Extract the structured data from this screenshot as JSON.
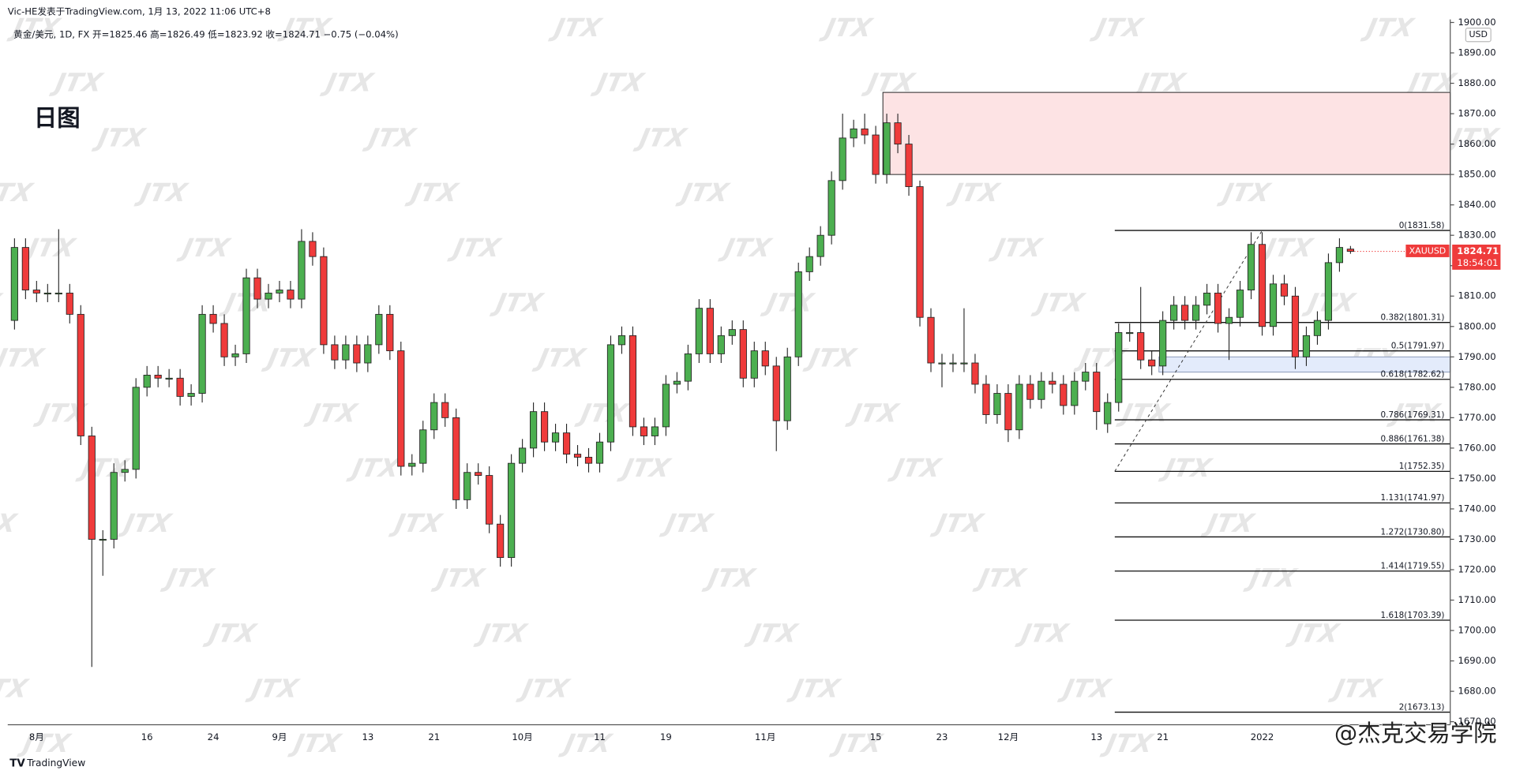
{
  "header": {
    "author": "Vic-HE发表于TradingView.com, 1月 13, 2022 11:06 UTC+8",
    "legend": "黄金/美元, 1D, FX  开=1825.46  高=1826.49  低=1823.92  收=1824.71  −0.75 (−0.04%)",
    "brand": "TradingView",
    "watermark": "JTX",
    "signature": "@杰克交易学院"
  },
  "chart_data": {
    "type": "candlestick",
    "title": "日图",
    "symbol": "XAUUSD",
    "currency": "USD",
    "countdown": "18:54:01",
    "last_price": 1824.71,
    "up_color": "#4caf50",
    "down_color": "#ef3b3b",
    "border_color": "#222222",
    "grid": false,
    "categories": [
      null,
      null,
      "8月",
      null,
      null,
      null,
      null,
      null,
      null,
      null,
      null,
      null,
      "16",
      null,
      null,
      null,
      null,
      null,
      "24",
      null,
      null,
      null,
      null,
      null,
      "9月",
      null,
      null,
      null,
      null,
      null,
      null,
      null,
      "13",
      null,
      null,
      null,
      null,
      null,
      "21",
      null,
      null,
      null,
      null,
      null,
      null,
      null,
      "10月",
      null,
      null,
      null,
      null,
      null,
      null,
      "11",
      null,
      null,
      null,
      null,
      null,
      "19",
      null,
      null,
      null,
      null,
      null,
      null,
      null,
      null,
      "11月",
      null,
      null,
      null,
      null,
      null,
      null,
      null,
      null,
      null,
      "15",
      null,
      null,
      null,
      null,
      null,
      "23",
      null,
      null,
      null,
      null,
      null,
      "12月",
      null,
      null,
      null,
      null,
      null,
      null,
      null,
      "13",
      null,
      null,
      null,
      null,
      null,
      "21",
      null,
      null,
      null,
      null,
      null,
      null,
      null,
      null,
      "2022",
      null,
      null,
      null,
      null,
      null,
      null,
      null,
      null
    ],
    "open": [
      1802,
      1826,
      1812,
      1811,
      1811,
      1811,
      1804,
      1764,
      1730,
      1730,
      1752,
      1753,
      1780,
      1784,
      1783,
      1783,
      1777,
      1778,
      1804,
      1801,
      1790,
      1791,
      1816,
      1809,
      1811,
      1812,
      1809,
      1828,
      1823,
      1794,
      1789,
      1794,
      1788,
      1794,
      1804,
      1792,
      1754,
      1755,
      1766,
      1775,
      1770,
      1743,
      1752,
      1751,
      1735,
      1724,
      1755,
      1760,
      1772,
      1762,
      1765,
      1758,
      1757,
      1755,
      1762,
      1794,
      1797,
      1767,
      1764,
      1767,
      1781,
      1782,
      1791,
      1806,
      1791,
      1797,
      1799,
      1783,
      1792,
      1787,
      1769,
      1790,
      1818,
      1823,
      1830,
      1848,
      1862,
      1865,
      1863,
      1850,
      1867,
      1860,
      1846,
      1803,
      1788,
      1788,
      1788,
      1788,
      1781,
      1771,
      1778,
      1766,
      1781,
      1776,
      1782,
      1781,
      1774,
      1782,
      1785,
      1768,
      1775,
      1798,
      1798,
      1789,
      1787,
      1802,
      1807,
      1802,
      1807,
      1811,
      1801,
      1803,
      1812,
      1827,
      1800,
      1814,
      1810,
      1790,
      1797,
      1802,
      1821,
      1825.46
    ],
    "high": [
      1829,
      1829,
      1815,
      1814,
      1832,
      1814,
      1807,
      1767,
      1733,
      1755,
      1756,
      1783,
      1787,
      1787,
      1786,
      1786,
      1781,
      1807,
      1807,
      1804,
      1794,
      1819,
      1819,
      1814,
      1815,
      1815,
      1832,
      1831,
      1826,
      1797,
      1797,
      1797,
      1797,
      1807,
      1807,
      1795,
      1758,
      1769,
      1778,
      1778,
      1773,
      1755,
      1755,
      1754,
      1738,
      1758,
      1763,
      1775,
      1775,
      1768,
      1768,
      1761,
      1760,
      1765,
      1797,
      1800,
      1800,
      1770,
      1770,
      1784,
      1785,
      1794,
      1809,
      1809,
      1800,
      1802,
      1802,
      1795,
      1795,
      1790,
      1793,
      1821,
      1826,
      1833,
      1851,
      1870,
      1868,
      1870,
      1866,
      1870,
      1870,
      1863,
      1848,
      1806,
      1791,
      1791,
      1806,
      1791,
      1784,
      1781,
      1781,
      1784,
      1784,
      1785,
      1785,
      1784,
      1785,
      1788,
      1788,
      1778,
      1801,
      1801,
      1813,
      1792,
      1805,
      1810,
      1810,
      1810,
      1814,
      1814,
      1806,
      1815,
      1831,
      1831,
      1817,
      1817,
      1813,
      1800,
      1805,
      1824,
      1829,
      1826.49
    ],
    "low": [
      1799,
      1809,
      1808,
      1808,
      1808,
      1801,
      1761,
      1688,
      1718,
      1727,
      1749,
      1750,
      1777,
      1780,
      1780,
      1774,
      1774,
      1775,
      1798,
      1787,
      1787,
      1788,
      1806,
      1806,
      1808,
      1806,
      1806,
      1820,
      1791,
      1786,
      1786,
      1785,
      1785,
      1791,
      1789,
      1751,
      1751,
      1752,
      1763,
      1767,
      1740,
      1740,
      1748,
      1732,
      1721,
      1721,
      1752,
      1757,
      1759,
      1759,
      1755,
      1754,
      1752,
      1752,
      1759,
      1791,
      1764,
      1761,
      1761,
      1764,
      1778,
      1779,
      1788,
      1788,
      1788,
      1794,
      1780,
      1780,
      1784,
      1759,
      1766,
      1787,
      1815,
      1820,
      1827,
      1845,
      1859,
      1860,
      1847,
      1847,
      1857,
      1843,
      1800,
      1785,
      1780,
      1785,
      1785,
      1778,
      1768,
      1768,
      1762,
      1763,
      1773,
      1773,
      1778,
      1771,
      1771,
      1779,
      1766,
      1765,
      1772,
      1795,
      1786,
      1784,
      1784,
      1799,
      1799,
      1799,
      1804,
      1798,
      1789,
      1800,
      1809,
      1797,
      1797,
      1807,
      1786,
      1787,
      1794,
      1799,
      1818,
      1823.92
    ],
    "close": [
      1826,
      1812,
      1811,
      1811,
      1811,
      1804,
      1764,
      1730,
      1730,
      1752,
      1753,
      1780,
      1784,
      1783,
      1783,
      1777,
      1778,
      1804,
      1801,
      1790,
      1791,
      1816,
      1809,
      1811,
      1812,
      1809,
      1828,
      1823,
      1794,
      1789,
      1794,
      1788,
      1794,
      1804,
      1792,
      1754,
      1755,
      1766,
      1775,
      1770,
      1743,
      1752,
      1751,
      1735,
      1724,
      1755,
      1760,
      1772,
      1762,
      1765,
      1758,
      1757,
      1755,
      1762,
      1794,
      1797,
      1767,
      1764,
      1767,
      1781,
      1782,
      1791,
      1806,
      1791,
      1797,
      1799,
      1783,
      1792,
      1787,
      1769,
      1790,
      1818,
      1823,
      1830,
      1848,
      1862,
      1865,
      1863,
      1850,
      1867,
      1860,
      1846,
      1803,
      1788,
      1788,
      1788,
      1788,
      1781,
      1771,
      1778,
      1766,
      1781,
      1776,
      1782,
      1781,
      1774,
      1782,
      1785,
      1772,
      1775,
      1798,
      1798,
      1789,
      1787,
      1802,
      1807,
      1802,
      1807,
      1811,
      1801,
      1803,
      1812,
      1827,
      1800,
      1814,
      1810,
      1790,
      1797,
      1802,
      1821,
      1826,
      1824.71
    ],
    "ylim": [
      1669,
      1901
    ],
    "yticks": [
      {
        "value": 1670,
        "label": "1670.00"
      },
      {
        "value": 1680,
        "label": "1680.00"
      },
      {
        "value": 1690,
        "label": "1690.00"
      },
      {
        "value": 1700,
        "label": "1700.00"
      },
      {
        "value": 1710,
        "label": "1710.00"
      },
      {
        "value": 1720,
        "label": "1720.00"
      },
      {
        "value": 1730,
        "label": "1730.00"
      },
      {
        "value": 1740,
        "label": "1740.00"
      },
      {
        "value": 1750,
        "label": "1750.00"
      },
      {
        "value": 1760,
        "label": "1760.00"
      },
      {
        "value": 1770,
        "label": "1770.00"
      },
      {
        "value": 1780,
        "label": "1780.00"
      },
      {
        "value": 1790,
        "label": "1790.00"
      },
      {
        "value": 1800,
        "label": "1800.00"
      },
      {
        "value": 1810,
        "label": "1810.00"
      },
      {
        "value": 1820,
        "label": "1820.00"
      },
      {
        "value": 1830,
        "label": "1830.00"
      },
      {
        "value": 1840,
        "label": "1840.00"
      },
      {
        "value": 1850,
        "label": "1850.00"
      },
      {
        "value": 1860,
        "label": "1860.00"
      },
      {
        "value": 1870,
        "label": "1870.00"
      },
      {
        "value": 1880,
        "label": "1880.00"
      },
      {
        "value": 1890,
        "label": "1890.00"
      },
      {
        "value": 1900,
        "label": "1900.00"
      }
    ],
    "zones": [
      {
        "start": 79,
        "low": 1850,
        "high": 1877,
        "color": "#fde3e4",
        "border": "#222222"
      },
      {
        "start": 104,
        "low": 1785,
        "high": 1790,
        "color": "#e3ebfb",
        "border": "#8a9ab8"
      }
    ],
    "fib": {
      "start": 100,
      "end": 113,
      "levels": [
        {
          "value": 1831.58,
          "label": "0(1831.58)"
        },
        {
          "value": 1801.31,
          "label": "0.382(1801.31)"
        },
        {
          "value": 1791.97,
          "label": "0.5(1791.97)"
        },
        {
          "value": 1782.62,
          "label": "0.618(1782.62)"
        },
        {
          "value": 1769.31,
          "label": "0.786(1769.31)"
        },
        {
          "value": 1761.38,
          "label": "0.886(1761.38)"
        },
        {
          "value": 1752.35,
          "label": "1(1752.35)"
        },
        {
          "value": 1741.97,
          "label": "1.131(1741.97)"
        },
        {
          "value": 1730.8,
          "label": "1.272(1730.80)"
        },
        {
          "value": 1719.55,
          "label": "1.414(1719.55)"
        },
        {
          "value": 1703.39,
          "label": "1.618(1703.39)"
        },
        {
          "value": 1673.13,
          "label": "2(1673.13)"
        }
      ]
    }
  }
}
